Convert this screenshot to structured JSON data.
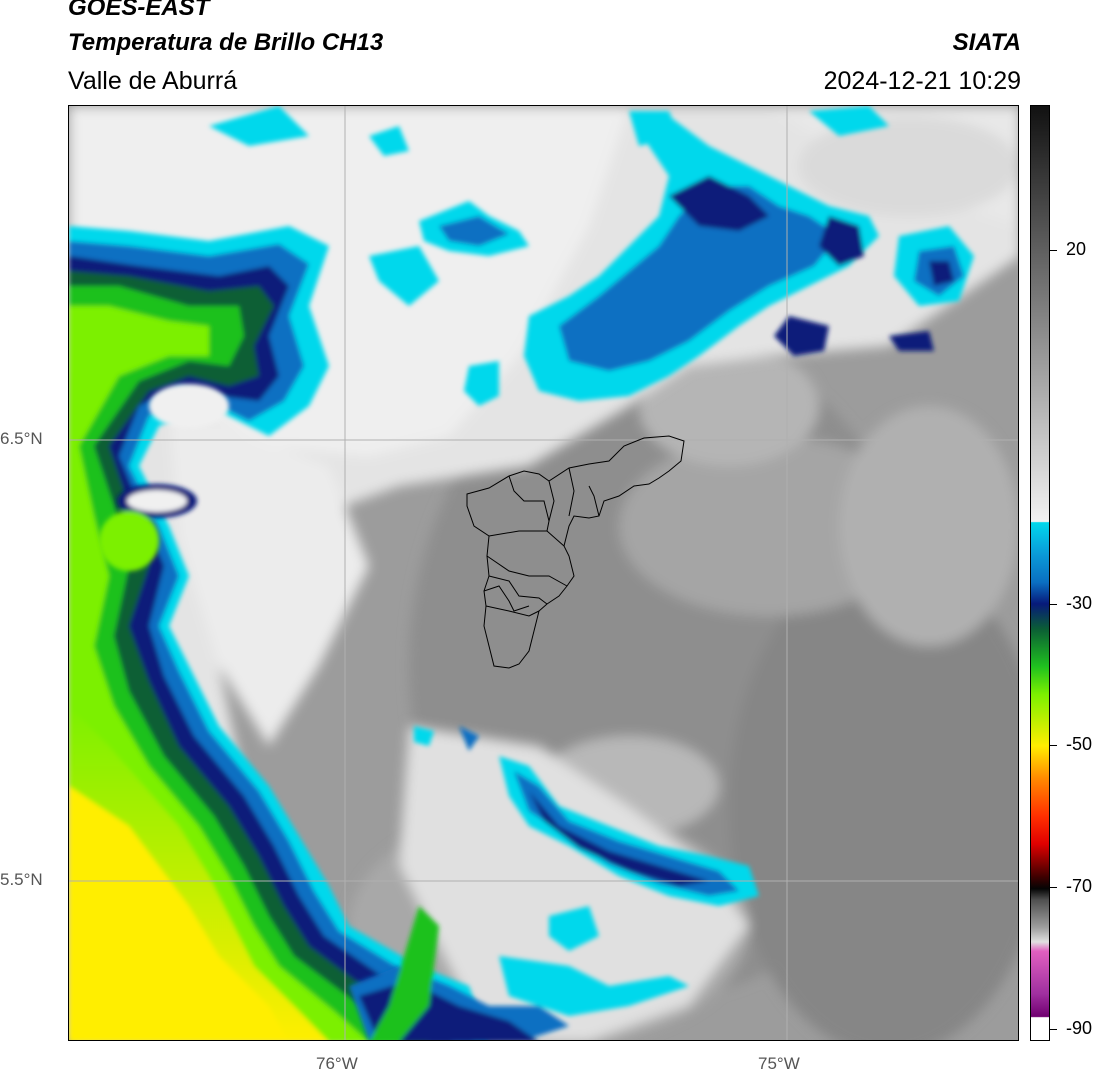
{
  "header": {
    "satellite": "GOES-EAST",
    "product": "Temperatura de Brillo CH13",
    "region": "Valle de Aburrá",
    "organization": "SIATA",
    "datetime": "2024-12-21 10:29"
  },
  "map": {
    "lat_labels": [
      "6.5°N",
      "5.5°N"
    ],
    "lon_labels": [
      "76°W",
      "75°W"
    ]
  },
  "colorbar": {
    "labels": [
      "20",
      "-30",
      "-50",
      "-70",
      "-90"
    ],
    "colors": {
      "warm_dark": "#111111",
      "warm_light": "#f2f2f2",
      "cyan": "#00d8ec",
      "blue": "#0a6fc2",
      "navy": "#071a7a",
      "dark_green": "#0b5e35",
      "green": "#1fc11f",
      "lime": "#7cf000",
      "yellow": "#ffee00",
      "orange": "#ff8a00",
      "red": "#e00000",
      "dark_red": "#400000",
      "gray": "#a0a0a0",
      "pink": "#e060c0",
      "purple": "#700070"
    }
  }
}
